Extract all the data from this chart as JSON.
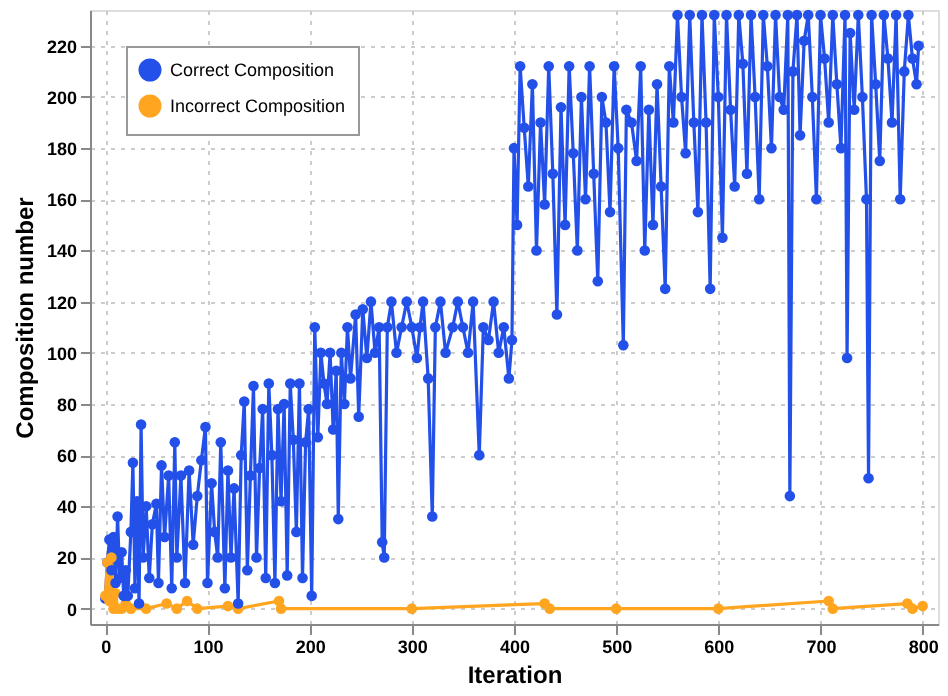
{
  "chart_data": {
    "type": "line",
    "xlabel": "Iteration",
    "ylabel": "Composition number",
    "xlim": [
      -15,
      815
    ],
    "ylim": [
      -6,
      234
    ],
    "xticks": [
      0,
      100,
      200,
      300,
      400,
      500,
      600,
      700,
      800
    ],
    "yticks": [
      0,
      20,
      40,
      60,
      80,
      100,
      120,
      140,
      160,
      180,
      200,
      220
    ],
    "grid": true,
    "legend": "top left",
    "marker": "circle",
    "line_style": "solid",
    "series": [
      {
        "name": "Correct Composition",
        "color": "#2250e8",
        "x": [
          0,
          2,
          4,
          6,
          8,
          10,
          12,
          14,
          16,
          18,
          20,
          22,
          25,
          27,
          29,
          31,
          33,
          35,
          37,
          40,
          43,
          46,
          50,
          52,
          55,
          58,
          62,
          65,
          68,
          70,
          74,
          78,
          82,
          86,
          90,
          94,
          98,
          100,
          104,
          107,
          110,
          113,
          117,
          120,
          123,
          126,
          130,
          133,
          136,
          139,
          142,
          145,
          148,
          151,
          154,
          157,
          160,
          163,
          166,
          169,
          172,
          175,
          178,
          181,
          184,
          187,
          190,
          193,
          196,
          199,
          202,
          205,
          208,
          211,
          214,
          217,
          220,
          223,
          226,
          228,
          231,
          234,
          237,
          240,
          245,
          248,
          252,
          256,
          260,
          264,
          268,
          271,
          273,
          276,
          280,
          285,
          290,
          295,
          300,
          305,
          308,
          311,
          316,
          320,
          323,
          328,
          333,
          340,
          345,
          350,
          355,
          360,
          366,
          370,
          375,
          380,
          385,
          390,
          395,
          398,
          400,
          403,
          406,
          410,
          414,
          418,
          422,
          426,
          430,
          434,
          438,
          442,
          446,
          450,
          454,
          458,
          462,
          466,
          470,
          474,
          478,
          482,
          486,
          490,
          494,
          498,
          502,
          507,
          510,
          515,
          520,
          524,
          528,
          532,
          536,
          540,
          544,
          548,
          552,
          556,
          560,
          564,
          568,
          572,
          576,
          580,
          584,
          588,
          592,
          596,
          600,
          604,
          608,
          612,
          616,
          620,
          624,
          628,
          632,
          636,
          640,
          644,
          648,
          652,
          656,
          660,
          664,
          668,
          670,
          673,
          677,
          680,
          684,
          688,
          692,
          696,
          700,
          704,
          708,
          712,
          716,
          720,
          724,
          726,
          729,
          733,
          737,
          741,
          745,
          747,
          750,
          754,
          758,
          762,
          766,
          770,
          774,
          778,
          782,
          786,
          790,
          794,
          796
        ],
        "values": [
          4,
          18,
          27,
          15,
          28,
          10,
          36,
          12,
          22,
          5,
          15,
          5,
          30,
          57,
          8,
          42,
          2,
          72,
          20,
          40,
          12,
          33,
          41,
          10,
          56,
          28,
          52,
          8,
          65,
          20,
          52,
          10,
          54,
          25,
          44,
          58,
          71,
          10,
          49,
          30,
          20,
          65,
          8,
          54,
          20,
          47,
          2,
          60,
          81,
          15,
          52,
          87,
          20,
          55,
          78,
          12,
          88,
          60,
          10,
          78,
          42,
          80,
          13,
          88,
          66,
          30,
          88,
          12,
          65,
          78,
          5,
          110,
          67,
          100,
          88,
          80,
          100,
          70,
          93,
          35,
          100,
          80,
          110,
          90,
          115,
          75,
          117,
          98,
          120,
          100,
          110,
          26,
          20,
          110,
          120,
          100,
          110,
          120,
          110,
          98,
          110,
          120,
          90,
          36,
          110,
          120,
          100,
          110,
          120,
          110,
          100,
          120,
          60,
          110,
          105,
          120,
          100,
          110,
          90,
          105,
          180,
          150,
          212,
          188,
          165,
          205,
          140,
          190,
          158,
          212,
          170,
          115,
          196,
          150,
          212,
          178,
          140,
          200,
          160,
          212,
          170,
          128,
          200,
          190,
          155,
          212,
          180,
          103,
          195,
          190,
          175,
          212,
          140,
          195,
          150,
          205,
          165,
          125,
          212,
          190,
          232,
          200,
          178,
          232,
          190,
          155,
          232,
          190,
          125,
          232,
          200,
          145,
          232,
          195,
          165,
          232,
          213,
          170,
          232,
          200,
          160,
          232,
          212,
          180,
          232,
          200,
          195,
          232,
          44,
          210,
          232,
          185,
          222,
          232,
          200,
          160,
          232,
          215,
          190,
          232,
          205,
          180,
          232,
          98,
          225,
          195,
          232,
          200,
          160,
          51,
          232,
          205,
          175,
          232,
          215,
          190,
          232,
          160,
          210,
          232,
          215,
          205,
          220
        ]
      },
      {
        "name": "Incorrect Composition",
        "color": "#ffa51f",
        "x": [
          0,
          2,
          4,
          6,
          8,
          10,
          12,
          16,
          20,
          25,
          40,
          60,
          70,
          80,
          90,
          120,
          130,
          170,
          172,
          300,
          430,
          435,
          500,
          600,
          708,
          712,
          785,
          790,
          800
        ],
        "values": [
          5,
          18,
          3,
          20,
          0,
          6,
          0,
          0,
          2,
          0,
          0,
          2,
          0,
          3,
          0,
          1,
          0,
          3,
          0,
          0,
          2,
          0,
          0,
          0,
          3,
          0,
          2,
          0,
          1
        ]
      }
    ]
  }
}
